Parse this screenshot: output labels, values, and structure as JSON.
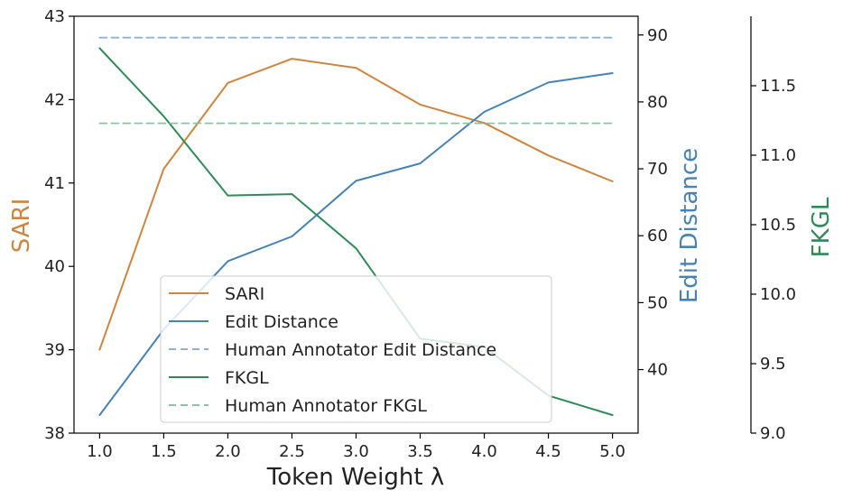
{
  "chart_data": {
    "type": "line",
    "xlabel": "Token Weight λ",
    "x": [
      1.0,
      1.5,
      2.0,
      2.5,
      3.0,
      3.5,
      4.0,
      4.5,
      5.0
    ],
    "x_tick_labels": [
      "1.0",
      "1.5",
      "2.0",
      "2.5",
      "3.0",
      "3.5",
      "4.0",
      "4.5",
      "5.0"
    ],
    "xlim": [
      0.8,
      5.2
    ],
    "axes": {
      "left": {
        "label": "SARI",
        "color": "#cd853f",
        "ylim": [
          38,
          43
        ],
        "ticks": [
          38,
          39,
          40,
          41,
          42,
          43
        ],
        "tick_labels": [
          "38",
          "39",
          "40",
          "41",
          "42",
          "43"
        ]
      },
      "right": {
        "label": "Edit Distance",
        "color": "#4682b4",
        "ylim": [
          30.5,
          92.8
        ],
        "ticks": [
          40,
          50,
          60,
          70,
          80,
          90
        ],
        "tick_labels": [
          "40",
          "50",
          "60",
          "70",
          "80",
          "90"
        ]
      },
      "far_right": {
        "label": "FKGL",
        "color": "#2e8b57",
        "ylim": [
          9.0,
          12.0
        ],
        "ticks": [
          9.0,
          9.5,
          10.0,
          10.5,
          11.0,
          11.5
        ],
        "tick_labels": [
          "9.0",
          "9.5",
          "10.0",
          "10.5",
          "11.0",
          "11.5"
        ]
      }
    },
    "series": [
      {
        "name": "SARI",
        "axis": "left",
        "color": "#cd853f",
        "style": "solid",
        "values": [
          39.0,
          41.17,
          42.2,
          42.49,
          42.38,
          41.94,
          41.72,
          41.33,
          41.02
        ]
      },
      {
        "name": "Edit Distance",
        "axis": "right",
        "color": "#4682b4",
        "style": "solid",
        "values": [
          33.2,
          46.0,
          56.2,
          59.9,
          68.2,
          70.8,
          78.5,
          82.9,
          84.3
        ]
      },
      {
        "name": "Human Annotator Edit Distance",
        "axis": "right",
        "color": "#8fb3cf",
        "style": "dashed",
        "values": [
          89.6,
          89.6,
          89.6,
          89.6,
          89.6,
          89.6,
          89.6,
          89.6,
          89.6
        ]
      },
      {
        "name": "FKGL",
        "axis": "far_right",
        "color": "#2e8b57",
        "style": "solid",
        "values": [
          11.77,
          11.28,
          10.71,
          10.72,
          10.33,
          9.68,
          9.62,
          9.27,
          9.13
        ]
      },
      {
        "name": "Human Annotator FKGL",
        "axis": "far_right",
        "color": "#8fbfa7",
        "style": "dashed",
        "values": [
          11.23,
          11.23,
          11.23,
          11.23,
          11.23,
          11.23,
          11.23,
          11.23,
          11.23
        ]
      }
    ],
    "legend_position": "lower-center",
    "grid": false
  }
}
